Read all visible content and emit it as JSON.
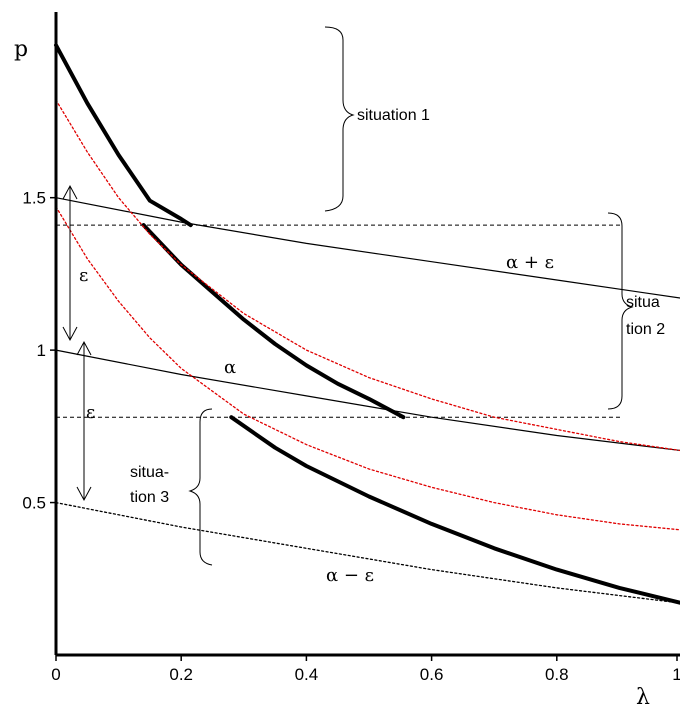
{
  "chart_data": {
    "type": "line",
    "title": "",
    "xlabel": "λ",
    "ylabel": "p",
    "xlim": [
      0,
      1
    ],
    "ylim": [
      0,
      2.05
    ],
    "x_ticks": [
      "0",
      "0.2",
      "0.4",
      "0.6",
      "0.8",
      "1"
    ],
    "y_ticks": [
      "0.5",
      "1",
      "1.5"
    ],
    "grid": false,
    "legend": "none",
    "series": [
      {
        "id": "alpha_plus_eps",
        "label": "α + ε",
        "style": "solid-thin",
        "color": "#000000",
        "x": [
          0,
          0.2,
          0.4,
          0.6,
          0.8,
          1.0
        ],
        "y": [
          1.5,
          1.42,
          1.35,
          1.29,
          1.23,
          1.17
        ]
      },
      {
        "id": "alpha",
        "label": "α",
        "style": "solid-thin",
        "color": "#000000",
        "x": [
          0,
          0.2,
          0.4,
          0.6,
          0.8,
          1.0
        ],
        "y": [
          1.0,
          0.92,
          0.85,
          0.78,
          0.72,
          0.67
        ]
      },
      {
        "id": "alpha_minus_eps",
        "label": "α − ε",
        "style": "dotted",
        "color": "#000000",
        "x": [
          0,
          0.2,
          0.4,
          0.6,
          0.8,
          1.0
        ],
        "y": [
          0.5,
          0.42,
          0.35,
          0.28,
          0.22,
          0.17
        ]
      },
      {
        "id": "thick_upper",
        "style": "thick",
        "color": "#000000",
        "x": [
          0,
          0.05,
          0.1,
          0.15,
          0.2,
          0.215
        ],
        "y": [
          2.0,
          1.81,
          1.64,
          1.49,
          1.43,
          1.41
        ]
      },
      {
        "id": "thick_middle",
        "style": "thick",
        "color": "#000000",
        "x": [
          0.14,
          0.2,
          0.25,
          0.3,
          0.35,
          0.4,
          0.45,
          0.5,
          0.555
        ],
        "y": [
          1.41,
          1.28,
          1.19,
          1.1,
          1.02,
          0.95,
          0.89,
          0.84,
          0.78
        ]
      },
      {
        "id": "thick_lower",
        "style": "thick",
        "color": "#000000",
        "x": [
          0.28,
          0.35,
          0.4,
          0.5,
          0.6,
          0.7,
          0.8,
          0.9,
          1.0
        ],
        "y": [
          0.78,
          0.68,
          0.62,
          0.52,
          0.43,
          0.35,
          0.28,
          0.22,
          0.17
        ]
      },
      {
        "id": "red_upper",
        "style": "dotted",
        "color": "#e00000",
        "x": [
          0,
          0.05,
          0.1,
          0.15,
          0.2,
          0.3,
          0.4,
          0.5,
          0.6,
          0.7,
          0.8,
          0.9,
          1.0
        ],
        "y": [
          1.82,
          1.65,
          1.5,
          1.38,
          1.28,
          1.12,
          1.0,
          0.91,
          0.84,
          0.78,
          0.74,
          0.7,
          0.67
        ]
      },
      {
        "id": "red_lower",
        "style": "dotted",
        "color": "#e00000",
        "x": [
          0,
          0.05,
          0.1,
          0.15,
          0.2,
          0.3,
          0.4,
          0.5,
          0.6,
          0.7,
          0.8,
          0.9,
          1.0
        ],
        "y": [
          1.47,
          1.3,
          1.16,
          1.04,
          0.94,
          0.79,
          0.69,
          0.61,
          0.55,
          0.5,
          0.46,
          0.43,
          0.41
        ]
      }
    ],
    "reference_lines": [
      {
        "id": "upper_threshold",
        "y": 1.41,
        "x_from": 0,
        "x_to": 0.905,
        "style": "dashed"
      },
      {
        "id": "lower_threshold",
        "y": 0.78,
        "x_from": 0,
        "x_to": 0.905,
        "style": "dashed"
      }
    ],
    "annotations": {
      "alpha_plus_eps": "α + ε",
      "alpha": "α",
      "alpha_minus_eps": "α − ε",
      "eps_upper": "ε",
      "eps_lower": "ε",
      "situation1": "situation 1",
      "situation2_line1": "situa",
      "situation2_line2": "tion 2",
      "situation3_line1": "situa-",
      "situation3_line2": "tion 3"
    }
  }
}
